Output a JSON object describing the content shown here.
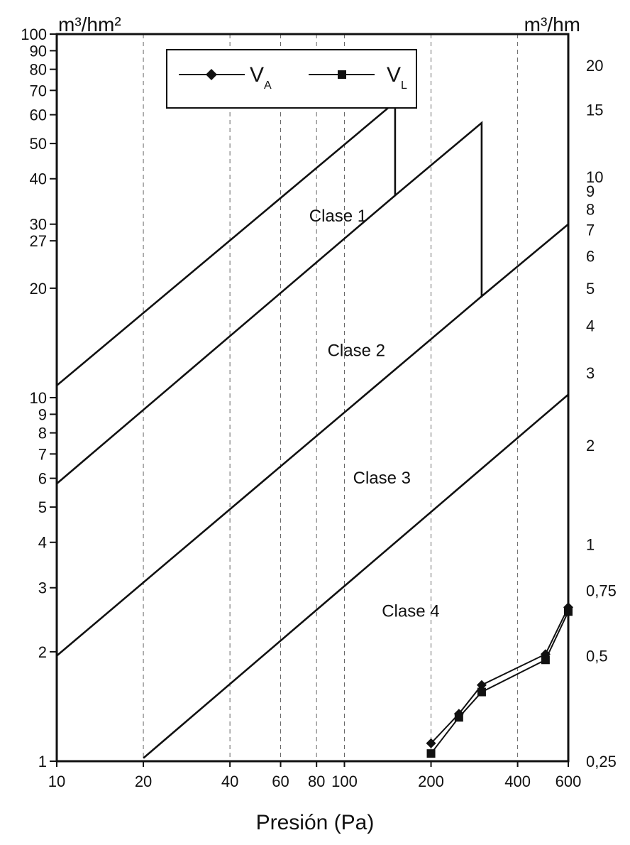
{
  "chart_data": {
    "type": "line",
    "xlabel": "Presión (Pa)",
    "x_scale": "log",
    "xlim": [
      10,
      600
    ],
    "x_ticks": [
      10,
      20,
      40,
      60,
      80,
      100,
      200,
      400,
      600
    ],
    "left_axis": {
      "unit": "m³/hm²",
      "scale": "log",
      "ylim": [
        1,
        100
      ],
      "ticks": [
        1,
        2,
        3,
        4,
        5,
        6,
        7,
        8,
        9,
        10,
        20,
        27,
        30,
        40,
        50,
        60,
        70,
        80,
        90,
        100
      ]
    },
    "right_axis": {
      "unit": "m³/hm",
      "scale": "log",
      "ticks": [
        {
          "label": "0,25",
          "left_value": 1
        },
        {
          "label": "0,5",
          "left_value": 1.95
        },
        {
          "label": "0,75",
          "left_value": 2.95
        },
        {
          "label": "1",
          "left_value": 3.95
        },
        {
          "label": "2",
          "left_value": 7.4
        },
        {
          "label": "3",
          "left_value": 11.7
        },
        {
          "label": "4",
          "left_value": 15.8
        },
        {
          "label": "5",
          "left_value": 20
        },
        {
          "label": "6",
          "left_value": 24.5
        },
        {
          "label": "7",
          "left_value": 29
        },
        {
          "label": "8",
          "left_value": 33
        },
        {
          "label": "9",
          "left_value": 37
        },
        {
          "label": "10",
          "left_value": 40.5
        },
        {
          "label": "15",
          "left_value": 62
        },
        {
          "label": "20",
          "left_value": 82
        }
      ]
    },
    "class_lines": [
      {
        "points": [
          [
            10,
            10.8
          ],
          [
            150,
            65
          ],
          [
            150,
            36
          ],
          [
            300,
            57
          ],
          [
            300,
            19
          ],
          [
            600,
            30
          ]
        ]
      },
      {
        "points": [
          [
            10,
            5.8
          ],
          [
            150,
            36
          ]
        ]
      },
      {
        "points": [
          [
            10,
            1.95
          ],
          [
            300,
            19
          ]
        ]
      },
      {
        "points": [
          [
            20,
            1.02
          ],
          [
            600,
            10.2
          ]
        ]
      }
    ],
    "class_labels": [
      {
        "text": "Clase 1",
        "x": 95,
        "y": 30.5
      },
      {
        "text": "Clase 2",
        "x": 110,
        "y": 13
      },
      {
        "text": "Clase 3",
        "x": 135,
        "y": 5.8
      },
      {
        "text": "Clase 4",
        "x": 170,
        "y": 2.5
      }
    ],
    "legend": {
      "placement": "top-center",
      "entries": [
        {
          "label": "V",
          "sub": "A",
          "marker": "diamond"
        },
        {
          "label": "V",
          "sub": "L",
          "marker": "square"
        }
      ]
    },
    "series": [
      {
        "name": "VA",
        "marker": "diamond",
        "x": [
          200,
          250,
          300,
          500,
          600
        ],
        "y": [
          1.12,
          1.35,
          1.62,
          1.97,
          2.65
        ]
      },
      {
        "name": "VL",
        "marker": "square",
        "x": [
          200,
          250,
          300,
          500,
          600
        ],
        "y": [
          1.05,
          1.32,
          1.55,
          1.9,
          2.58
        ]
      }
    ],
    "grid": "vertical dashed at x ticks"
  }
}
